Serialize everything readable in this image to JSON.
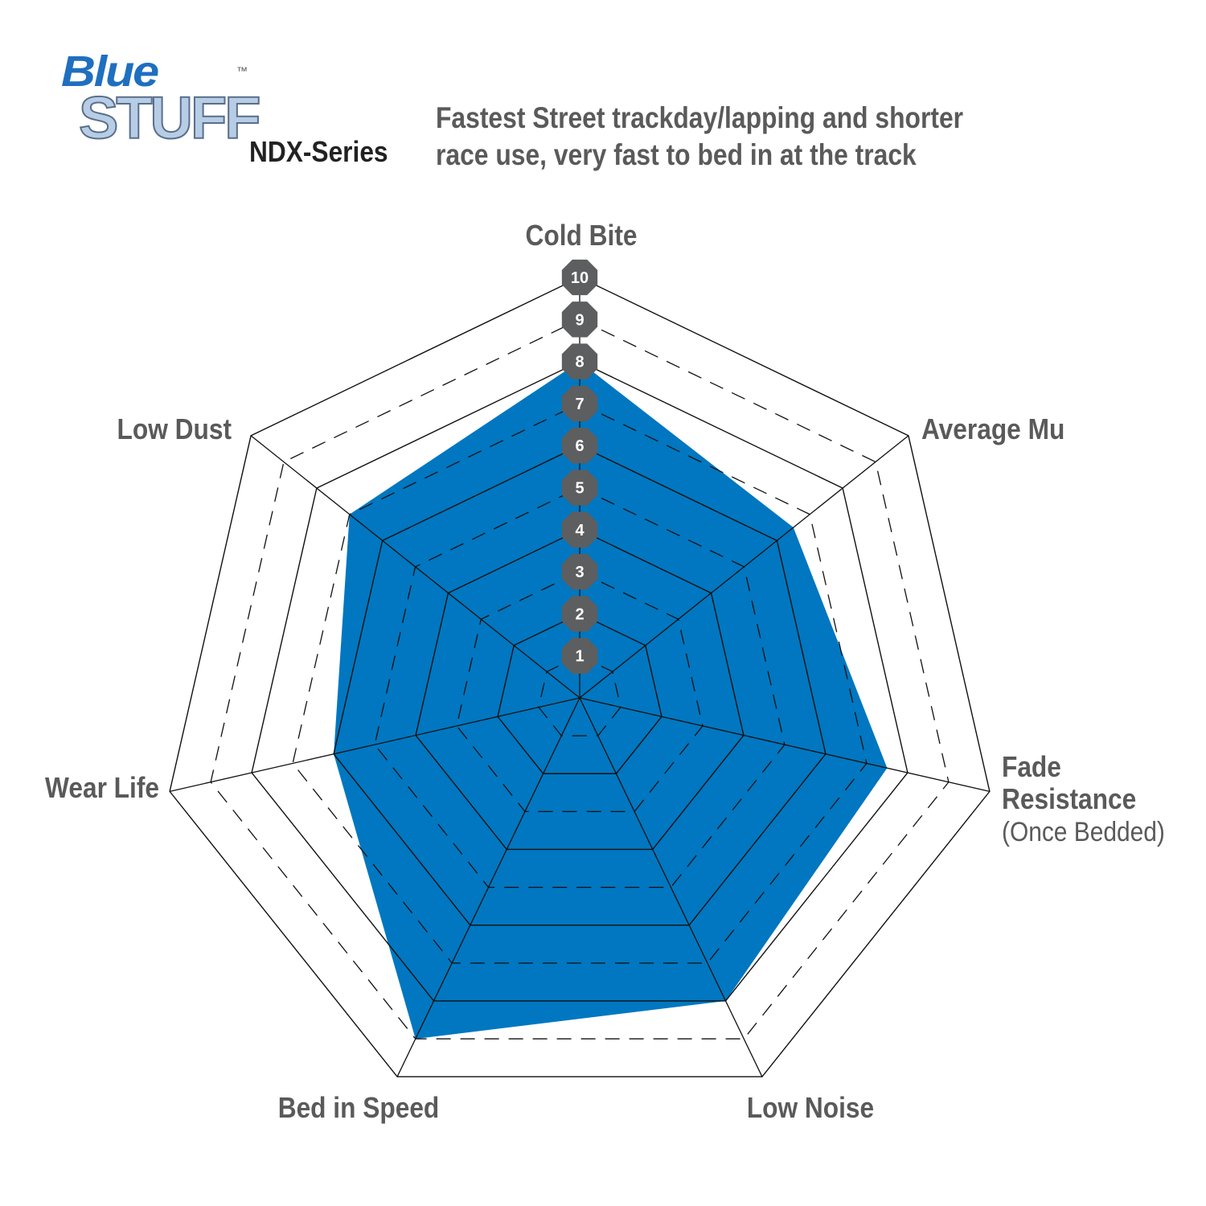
{
  "logo": {
    "line1": "Blue",
    "line2": "STUFF",
    "tm": "™"
  },
  "header": {
    "series": "NDX-Series",
    "subtitle_line1": "Fastest Street trackday/lapping and shorter",
    "subtitle_line2": "race use, very fast to bed in at the track"
  },
  "chart_data": {
    "type": "radar",
    "axes": [
      "Cold Bite",
      "Average Mu",
      "Fade Resistance",
      "Low Noise",
      "Bed in Speed",
      "Wear Life",
      "Low Dust"
    ],
    "axis_sublabels": {
      "Fade Resistance": "(Once Bedded)"
    },
    "values": [
      8,
      6.5,
      7.5,
      8,
      9,
      6,
      7
    ],
    "range": [
      0,
      10
    ],
    "ticks": [
      1,
      2,
      3,
      4,
      5,
      6,
      7,
      8,
      9,
      10
    ],
    "fill_color": "#0077c0",
    "badge_color": "#5d5e60",
    "grid": "solid even rings, dashed odd rings"
  }
}
